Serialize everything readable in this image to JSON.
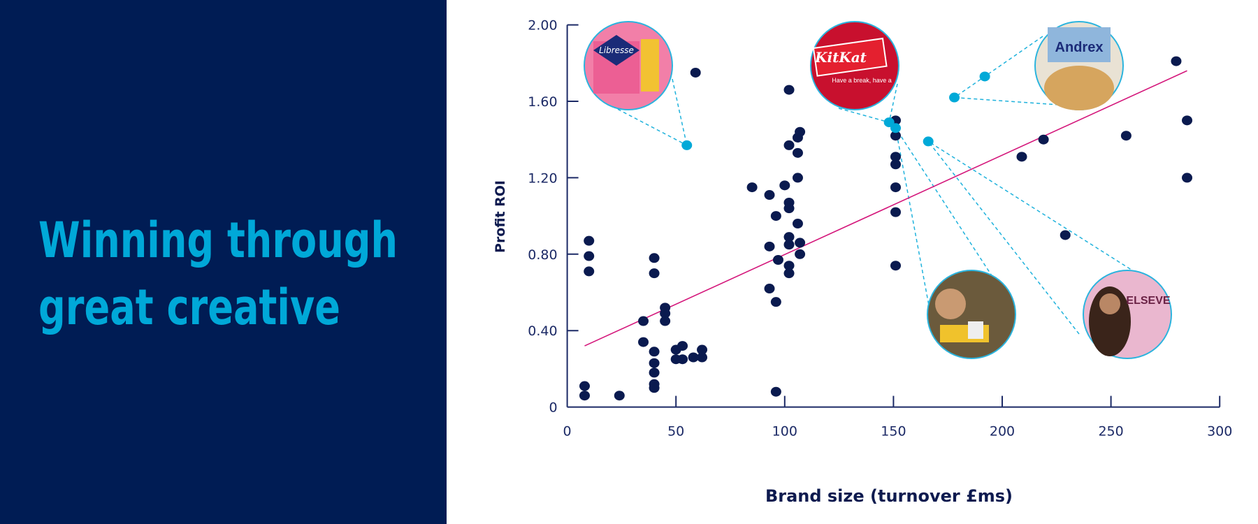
{
  "panel": {
    "title_lines": [
      "Winning through",
      "great creative"
    ],
    "background": "#001c54",
    "title_color": "#00a8d8"
  },
  "chart_data": {
    "type": "scatter",
    "xlabel": "Brand size (turnover £ms)",
    "ylabel": "Profit ROI",
    "xlim": [
      0,
      300
    ],
    "ylim": [
      0,
      2.0
    ],
    "x_ticks": [
      "0",
      "50",
      "100",
      "150",
      "200",
      "250",
      "300"
    ],
    "y_ticks": [
      "0",
      "0.40",
      "0.80",
      "1.20",
      "1.60",
      "2.00"
    ],
    "grid": false,
    "colors": {
      "points": "#0a1a4f",
      "highlighted": "#00a9d8",
      "trendline": "#d4177b",
      "axis": "#1c2a66"
    },
    "series": [
      {
        "role": "points",
        "x": [
          8,
          8,
          10,
          10,
          10,
          24,
          35,
          35,
          40,
          40,
          40,
          40,
          40,
          40,
          40,
          45,
          45,
          45,
          50,
          50,
          53,
          53,
          58,
          62,
          62,
          59,
          85,
          93,
          93,
          93,
          96,
          96,
          96,
          97,
          100,
          102,
          102,
          102,
          102,
          102,
          102,
          102,
          102,
          106,
          107,
          106,
          106,
          106,
          107,
          107,
          151,
          151,
          151,
          151,
          151,
          151,
          151,
          209,
          219,
          229,
          257,
          280,
          285,
          285
        ],
        "y": [
          0.11,
          0.06,
          0.87,
          0.79,
          0.71,
          0.06,
          0.45,
          0.34,
          0.78,
          0.7,
          0.29,
          0.23,
          0.18,
          0.12,
          0.1,
          0.52,
          0.49,
          0.45,
          0.3,
          0.25,
          0.32,
          0.25,
          0.26,
          0.3,
          0.26,
          1.75,
          1.15,
          1.11,
          0.84,
          0.62,
          1.0,
          0.55,
          0.08,
          0.77,
          1.16,
          1.66,
          1.37,
          1.07,
          1.04,
          0.89,
          0.85,
          0.74,
          0.7,
          1.41,
          1.44,
          1.33,
          1.2,
          0.96,
          0.86,
          0.8,
          1.5,
          1.42,
          1.31,
          1.27,
          1.15,
          1.02,
          0.74,
          1.31,
          1.4,
          0.9,
          1.42,
          1.81,
          1.5,
          1.2
        ]
      },
      {
        "role": "highlighted",
        "x": [
          55,
          148,
          151,
          166,
          178,
          192
        ],
        "y": [
          1.37,
          1.49,
          1.46,
          1.39,
          1.62,
          1.73
        ]
      }
    ],
    "trendline": {
      "x": [
        8,
        285
      ],
      "y": [
        0.32,
        1.76
      ]
    },
    "callouts": [
      {
        "brand": "Libresse",
        "fill": "#f27fa8",
        "point_index": 0
      },
      {
        "brand": "KitKat",
        "caption": "Have a break, have a",
        "fill": "#c8102e",
        "point_index": 1
      },
      {
        "brand": "Andrex",
        "fill": "#e9e2d4",
        "point_index": 4
      },
      {
        "brand": "",
        "fill": "#6b5a3c",
        "point_index": 2
      },
      {
        "brand": "ELSEVE",
        "fill": "#eab7cf",
        "point_index": 3
      }
    ]
  }
}
